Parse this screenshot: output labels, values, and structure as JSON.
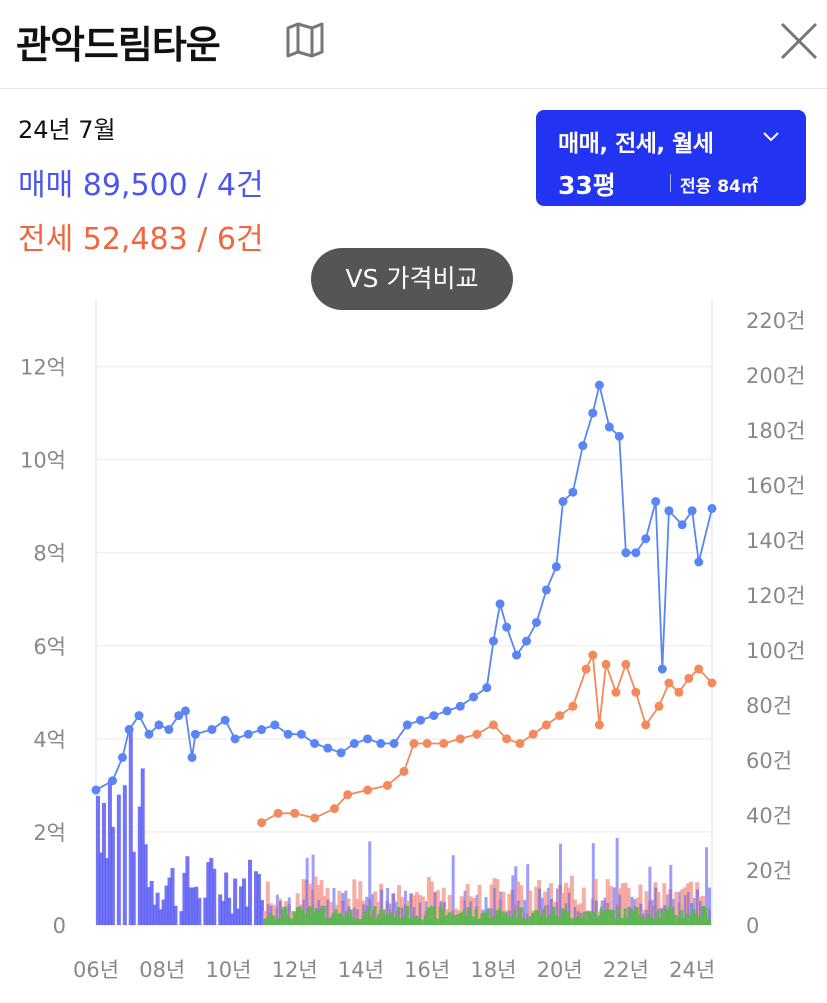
{
  "header": {
    "title": "관악드림타운",
    "map_icon": "map-icon",
    "close_icon": "close-icon"
  },
  "summary": {
    "period": "24년 7월",
    "sale": "매매 89,500 / 4건",
    "jeonse": "전세 52,483 / 6건"
  },
  "filter": {
    "trade_types": "매매, 전세, 월세",
    "size": "33평",
    "area": "전용 84㎡",
    "chevron_icon": "chevron-down-icon"
  },
  "vs_button": "VS 가격비교",
  "colors": {
    "sale": "#4b55f0",
    "sale_dot": "#5a86f5",
    "jeonse": "#f28a5c",
    "volume_sale": "#5a5df5",
    "volume_jeonse": "#f59a8f",
    "volume_rent": "#54b94a",
    "accent": "#2333f2"
  },
  "chart_data": {
    "type": "line",
    "x_ticks": [
      "06년",
      "08년",
      "10년",
      "12년",
      "14년",
      "16년",
      "18년",
      "20년",
      "22년",
      "24년"
    ],
    "y_left_ticks": [
      "0",
      "2억",
      "4억",
      "6억",
      "8억",
      "10억",
      "12억"
    ],
    "y_left_lim": [
      0,
      13
    ],
    "y_right_ticks": [
      "0",
      "20건",
      "40건",
      "60건",
      "80건",
      "100건",
      "120건",
      "140건",
      "160건",
      "180건",
      "200건",
      "220건"
    ],
    "y_right_lim": [
      0,
      220
    ],
    "x_lim": [
      2006.0,
      2024.6
    ],
    "grid": true,
    "series": [
      {
        "values": [
          [
            2006.0,
            2.9
          ],
          [
            2006.5,
            3.1
          ],
          [
            2006.8,
            3.6
          ],
          [
            2007.0,
            4.2
          ],
          [
            2007.3,
            4.5
          ],
          [
            2007.6,
            4.1
          ],
          [
            2007.9,
            4.3
          ],
          [
            2008.2,
            4.2
          ],
          [
            2008.5,
            4.5
          ],
          [
            2008.7,
            4.6
          ],
          [
            2008.9,
            3.6
          ],
          [
            2009.0,
            4.1
          ],
          [
            2009.5,
            4.2
          ],
          [
            2009.9,
            4.4
          ],
          [
            2010.2,
            4.0
          ],
          [
            2010.6,
            4.1
          ],
          [
            2011.0,
            4.2
          ],
          [
            2011.4,
            4.3
          ],
          [
            2011.8,
            4.1
          ],
          [
            2012.2,
            4.1
          ],
          [
            2012.6,
            3.9
          ],
          [
            2013.0,
            3.8
          ],
          [
            2013.4,
            3.7
          ],
          [
            2013.8,
            3.9
          ],
          [
            2014.2,
            4.0
          ],
          [
            2014.6,
            3.9
          ],
          [
            2015.0,
            3.9
          ],
          [
            2015.4,
            4.3
          ],
          [
            2015.8,
            4.4
          ],
          [
            2016.2,
            4.5
          ],
          [
            2016.6,
            4.6
          ],
          [
            2017.0,
            4.7
          ],
          [
            2017.4,
            4.9
          ],
          [
            2017.8,
            5.1
          ],
          [
            2018.0,
            6.1
          ],
          [
            2018.2,
            6.9
          ],
          [
            2018.4,
            6.4
          ],
          [
            2018.7,
            5.8
          ],
          [
            2019.0,
            6.1
          ],
          [
            2019.3,
            6.5
          ],
          [
            2019.6,
            7.2
          ],
          [
            2019.9,
            7.7
          ],
          [
            2020.1,
            9.1
          ],
          [
            2020.4,
            9.3
          ],
          [
            2020.7,
            10.3
          ],
          [
            2021.0,
            11.0
          ],
          [
            2021.2,
            11.6
          ],
          [
            2021.5,
            10.7
          ],
          [
            2021.8,
            10.5
          ],
          [
            2022.0,
            8.0
          ],
          [
            2022.3,
            8.0
          ],
          [
            2022.6,
            8.3
          ],
          [
            2022.9,
            9.1
          ],
          [
            2023.1,
            5.5
          ],
          [
            2023.3,
            8.9
          ],
          [
            2023.7,
            8.6
          ],
          [
            2024.0,
            8.9
          ],
          [
            2024.2,
            7.8
          ],
          [
            2024.6,
            8.95
          ]
        ]
      },
      {
        "values": [
          [
            2011.0,
            2.2
          ],
          [
            2011.5,
            2.4
          ],
          [
            2012.0,
            2.4
          ],
          [
            2012.6,
            2.3
          ],
          [
            2013.2,
            2.5
          ],
          [
            2013.6,
            2.8
          ],
          [
            2014.2,
            2.9
          ],
          [
            2014.8,
            3.0
          ],
          [
            2015.3,
            3.3
          ],
          [
            2015.6,
            3.9
          ],
          [
            2016.0,
            3.9
          ],
          [
            2016.5,
            3.9
          ],
          [
            2017.0,
            4.0
          ],
          [
            2017.5,
            4.1
          ],
          [
            2018.0,
            4.3
          ],
          [
            2018.4,
            4.0
          ],
          [
            2018.8,
            3.9
          ],
          [
            2019.2,
            4.1
          ],
          [
            2019.6,
            4.3
          ],
          [
            2020.0,
            4.5
          ],
          [
            2020.4,
            4.7
          ],
          [
            2020.8,
            5.5
          ],
          [
            2021.0,
            5.8
          ],
          [
            2021.2,
            4.3
          ],
          [
            2021.4,
            5.6
          ],
          [
            2021.7,
            5.0
          ],
          [
            2022.0,
            5.6
          ],
          [
            2022.3,
            5.0
          ],
          [
            2022.6,
            4.3
          ],
          [
            2023.0,
            4.7
          ],
          [
            2023.3,
            5.2
          ],
          [
            2023.6,
            5.0
          ],
          [
            2023.9,
            5.3
          ],
          [
            2024.2,
            5.5
          ],
          [
            2024.6,
            5.2
          ]
        ]
      }
    ]
  }
}
